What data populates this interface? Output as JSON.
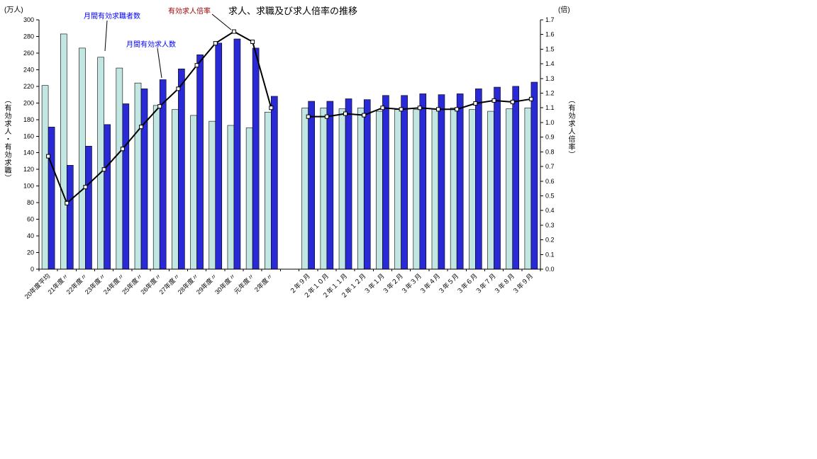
{
  "chart": {
    "title": "求人、求職及び求人倍率の推移"
  },
  "chart_data": {
    "type": "bar+line",
    "title": "求人、求職及び求人倍率の推移",
    "categories": [
      "20年度平均",
      "21年度〃",
      "22年度〃",
      "23年度〃",
      "24年度〃",
      "25年度〃",
      "26年度〃",
      "27年度〃",
      "28年度〃",
      "29年度〃",
      "30年度〃",
      "元年度〃",
      "2年度〃",
      "２年９月",
      "２年１０月",
      "２年１１月",
      "２年１２月",
      "３年１月",
      "３年２月",
      "３年３月",
      "３年４月",
      "３年５月",
      "３年６月",
      "３年７月",
      "３年８月",
      "３年９月"
    ],
    "gap_after_index": 12,
    "series": [
      {
        "name": "月間有効求職者数",
        "type": "bar",
        "axis": "left",
        "color": "#C2E7E2",
        "values": [
          221,
          283,
          266,
          255,
          242,
          224,
          197,
          192,
          185,
          178,
          173,
          170,
          189,
          194,
          194,
          193,
          194,
          190,
          192,
          192,
          193,
          194,
          192,
          190,
          193,
          194
        ]
      },
      {
        "name": "月間有効求人数",
        "type": "bar",
        "axis": "left",
        "color": "#2929D6",
        "values": [
          171,
          125,
          148,
          174,
          199,
          217,
          228,
          241,
          258,
          272,
          277,
          266,
          208,
          202,
          202,
          205,
          204,
          209,
          209,
          211,
          210,
          211,
          217,
          219,
          220,
          225
        ]
      },
      {
        "name": "有効求人倍率",
        "type": "line",
        "axis": "right",
        "color": "#000000",
        "marker": "square",
        "values": [
          0.77,
          0.45,
          0.56,
          0.68,
          0.82,
          0.97,
          1.11,
          1.23,
          1.39,
          1.54,
          1.62,
          1.55,
          1.1,
          1.04,
          1.04,
          1.06,
          1.05,
          1.1,
          1.09,
          1.1,
          1.09,
          1.09,
          1.13,
          1.15,
          1.14,
          1.16
        ]
      }
    ],
    "left_axis": {
      "unit": "(万人)",
      "label": "（有効求人・有効求職）",
      "min": 0,
      "max": 300,
      "step": 20
    },
    "right_axis": {
      "unit": "(倍)",
      "label": "（有効求人倍率）",
      "min": 0,
      "max": 1.7,
      "step": 0.1
    },
    "grid": false,
    "legend": "inline-annotations"
  }
}
